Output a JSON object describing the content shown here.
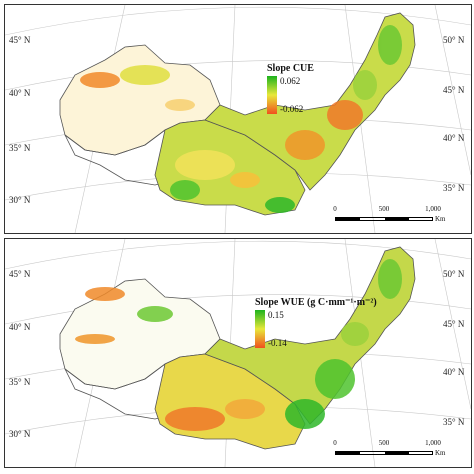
{
  "panels": [
    {
      "id": "cue",
      "legend": {
        "title": "Slope CUE",
        "max": "0.062",
        "min": "-0.062"
      },
      "lat_left": [
        "45° N",
        "40° N",
        "35° N",
        "30° N"
      ],
      "lat_right": [
        "50° N",
        "45° N",
        "40° N",
        "35° N"
      ],
      "scale": {
        "ticks": [
          "0",
          "500",
          "1,000"
        ],
        "unit": "Km"
      }
    },
    {
      "id": "wue",
      "legend": {
        "title": "Slope WUE (g C·mm⁻¹·m⁻²)",
        "max": "0.15",
        "min": "-0.14"
      },
      "lat_left": [
        "45° N",
        "40° N",
        "35° N",
        "30° N"
      ],
      "lat_right": [
        "50° N",
        "45° N",
        "40° N",
        "35° N"
      ],
      "scale": {
        "ticks": [
          "0",
          "500",
          "1,000"
        ],
        "unit": "Km"
      }
    }
  ],
  "colors": {
    "high": "#1db31d",
    "mid": "#e8e83a",
    "low": "#f0501e",
    "border": "#555555"
  }
}
